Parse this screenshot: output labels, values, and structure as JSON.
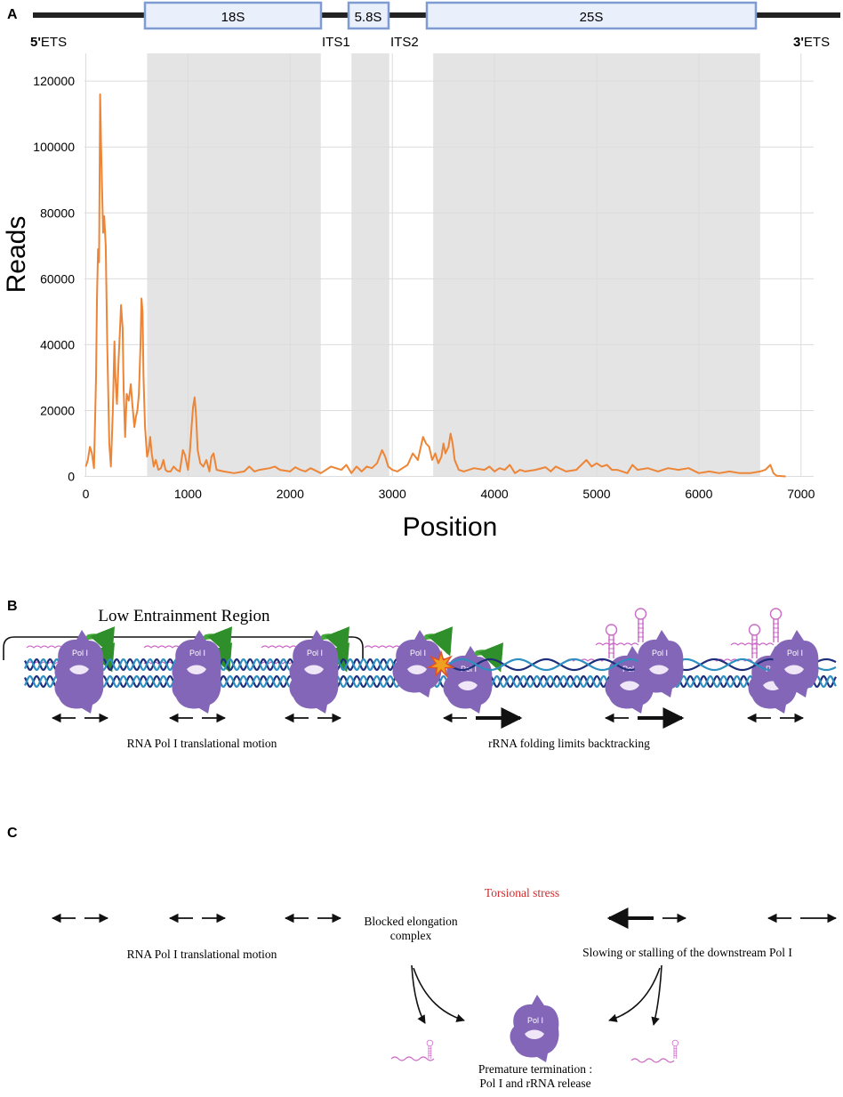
{
  "panel_a": {
    "label": "A",
    "gene_map": {
      "ends": {
        "left": "5'ETS",
        "left_bold": "5'",
        "left_rest": "ETS",
        "right": "3'ETS",
        "right_bold": "3'",
        "right_rest": "ETS"
      },
      "boxes": [
        "18S",
        "5.8S",
        "25S"
      ],
      "spacers": [
        "ITS1",
        "ITS2"
      ]
    }
  },
  "chart_data": {
    "type": "line",
    "xlabel": "Position",
    "ylabel": "Reads",
    "xlim": [
      0,
      7100
    ],
    "ylim": [
      0,
      125000
    ],
    "x_ticks": [
      0,
      1000,
      2000,
      3000,
      4000,
      5000,
      6000,
      7000
    ],
    "y_ticks": [
      0,
      20000,
      40000,
      60000,
      80000,
      100000,
      120000
    ],
    "shaded_regions": [
      {
        "name": "18S",
        "start": 600,
        "end": 2300
      },
      {
        "name": "5.8S",
        "start": 2600,
        "end": 2970
      },
      {
        "name": "25S",
        "start": 3400,
        "end": 6600
      }
    ],
    "series": [
      {
        "name": "Reads",
        "color": "#ed8537",
        "points": [
          [
            0,
            3000
          ],
          [
            20,
            5000
          ],
          [
            40,
            9000
          ],
          [
            60,
            7000
          ],
          [
            80,
            2500
          ],
          [
            100,
            30000
          ],
          [
            110,
            55000
          ],
          [
            120,
            69000
          ],
          [
            130,
            65000
          ],
          [
            140,
            116000
          ],
          [
            150,
            100000
          ],
          [
            160,
            86000
          ],
          [
            170,
            74000
          ],
          [
            180,
            79000
          ],
          [
            195,
            70000
          ],
          [
            210,
            40000
          ],
          [
            230,
            10000
          ],
          [
            245,
            3000
          ],
          [
            265,
            20000
          ],
          [
            280,
            41000
          ],
          [
            290,
            30000
          ],
          [
            305,
            22000
          ],
          [
            320,
            35000
          ],
          [
            335,
            45000
          ],
          [
            345,
            52000
          ],
          [
            360,
            45000
          ],
          [
            370,
            27000
          ],
          [
            385,
            12000
          ],
          [
            400,
            25000
          ],
          [
            420,
            23000
          ],
          [
            440,
            28000
          ],
          [
            455,
            22000
          ],
          [
            475,
            15000
          ],
          [
            490,
            18000
          ],
          [
            505,
            20000
          ],
          [
            520,
            25000
          ],
          [
            535,
            40000
          ],
          [
            545,
            54000
          ],
          [
            555,
            50000
          ],
          [
            565,
            30000
          ],
          [
            580,
            15000
          ],
          [
            600,
            6000
          ],
          [
            615,
            8000
          ],
          [
            630,
            12000
          ],
          [
            645,
            7000
          ],
          [
            665,
            3000
          ],
          [
            685,
            5000
          ],
          [
            710,
            2000
          ],
          [
            735,
            2500
          ],
          [
            760,
            5000
          ],
          [
            780,
            2000
          ],
          [
            800,
            1500
          ],
          [
            830,
            1500
          ],
          [
            860,
            3000
          ],
          [
            890,
            2000
          ],
          [
            920,
            1500
          ],
          [
            950,
            8000
          ],
          [
            970,
            6500
          ],
          [
            1000,
            2000
          ],
          [
            1020,
            8000
          ],
          [
            1035,
            15000
          ],
          [
            1050,
            21000
          ],
          [
            1065,
            24000
          ],
          [
            1080,
            18000
          ],
          [
            1095,
            8000
          ],
          [
            1120,
            4000
          ],
          [
            1150,
            3000
          ],
          [
            1180,
            5000
          ],
          [
            1210,
            1500
          ],
          [
            1230,
            6000
          ],
          [
            1250,
            7000
          ],
          [
            1280,
            2000
          ],
          [
            1350,
            1500
          ],
          [
            1450,
            1000
          ],
          [
            1550,
            1500
          ],
          [
            1600,
            3000
          ],
          [
            1650,
            1500
          ],
          [
            1700,
            2000
          ],
          [
            1800,
            2500
          ],
          [
            1850,
            3000
          ],
          [
            1900,
            2000
          ],
          [
            2000,
            1500
          ],
          [
            2050,
            2800
          ],
          [
            2100,
            2000
          ],
          [
            2150,
            1500
          ],
          [
            2200,
            2500
          ],
          [
            2300,
            1000
          ],
          [
            2400,
            3000
          ],
          [
            2500,
            2000
          ],
          [
            2550,
            3500
          ],
          [
            2600,
            1000
          ],
          [
            2650,
            3000
          ],
          [
            2700,
            1500
          ],
          [
            2750,
            3000
          ],
          [
            2800,
            2500
          ],
          [
            2850,
            4000
          ],
          [
            2900,
            8000
          ],
          [
            2930,
            6000
          ],
          [
            2960,
            3000
          ],
          [
            3000,
            2000
          ],
          [
            3050,
            1500
          ],
          [
            3100,
            2500
          ],
          [
            3150,
            3500
          ],
          [
            3200,
            7000
          ],
          [
            3250,
            5000
          ],
          [
            3300,
            12000
          ],
          [
            3330,
            10000
          ],
          [
            3360,
            9000
          ],
          [
            3390,
            5000
          ],
          [
            3420,
            7000
          ],
          [
            3450,
            4000
          ],
          [
            3480,
            6000
          ],
          [
            3500,
            10000
          ],
          [
            3520,
            7000
          ],
          [
            3550,
            9000
          ],
          [
            3570,
            13000
          ],
          [
            3590,
            10000
          ],
          [
            3610,
            5000
          ],
          [
            3650,
            2000
          ],
          [
            3700,
            1500
          ],
          [
            3800,
            2500
          ],
          [
            3900,
            2000
          ],
          [
            3950,
            3000
          ],
          [
            4000,
            1500
          ],
          [
            4050,
            2500
          ],
          [
            4100,
            2000
          ],
          [
            4150,
            3500
          ],
          [
            4200,
            1000
          ],
          [
            4250,
            2000
          ],
          [
            4300,
            1500
          ],
          [
            4400,
            2000
          ],
          [
            4500,
            2800
          ],
          [
            4550,
            1500
          ],
          [
            4600,
            3000
          ],
          [
            4700,
            1500
          ],
          [
            4800,
            2000
          ],
          [
            4900,
            5000
          ],
          [
            4950,
            3000
          ],
          [
            5000,
            4000
          ],
          [
            5050,
            3000
          ],
          [
            5100,
            3500
          ],
          [
            5150,
            2000
          ],
          [
            5200,
            2000
          ],
          [
            5300,
            1000
          ],
          [
            5350,
            3500
          ],
          [
            5400,
            2000
          ],
          [
            5500,
            2500
          ],
          [
            5600,
            1500
          ],
          [
            5700,
            2500
          ],
          [
            5800,
            2000
          ],
          [
            5900,
            2500
          ],
          [
            6000,
            1000
          ],
          [
            6100,
            1500
          ],
          [
            6200,
            1000
          ],
          [
            6300,
            1500
          ],
          [
            6400,
            1000
          ],
          [
            6500,
            1000
          ],
          [
            6600,
            1500
          ],
          [
            6650,
            2000
          ],
          [
            6700,
            3500
          ],
          [
            6730,
            1000
          ],
          [
            6760,
            200
          ],
          [
            6850,
            0
          ]
        ]
      }
    ]
  },
  "panel_b": {
    "label": "B",
    "bracket_label": "Low Entrainment Region",
    "caption_left": "RNA Pol I translational motion",
    "caption_right": "rRNA folding limits backtracking",
    "pol_label": "Pol I"
  },
  "panel_c": {
    "label": "C",
    "pol_label": "Pol I",
    "caption_motion": "RNA Pol I translational motion",
    "caption_blocked_1": "Blocked elongation",
    "caption_blocked_2": "complex",
    "caption_stress": "Torsional stress",
    "caption_stall": "Slowing or stalling of the downstream Pol I",
    "caption_premature_1": "Premature termination :",
    "caption_premature_2": "Pol I and rRNA release"
  },
  "colors": {
    "line": "#ed8537",
    "shade": "#e4e4e4",
    "box_fill": "#e9effb",
    "box_stroke": "#7e9bd2",
    "pol": "#8466b8",
    "dna_a": "#1d2f7a",
    "dna_b": "#2d8fc0",
    "rna": "#cc6ac8",
    "green": "#43a93b",
    "stress": "#d02c2c",
    "star": "#f0a020"
  }
}
